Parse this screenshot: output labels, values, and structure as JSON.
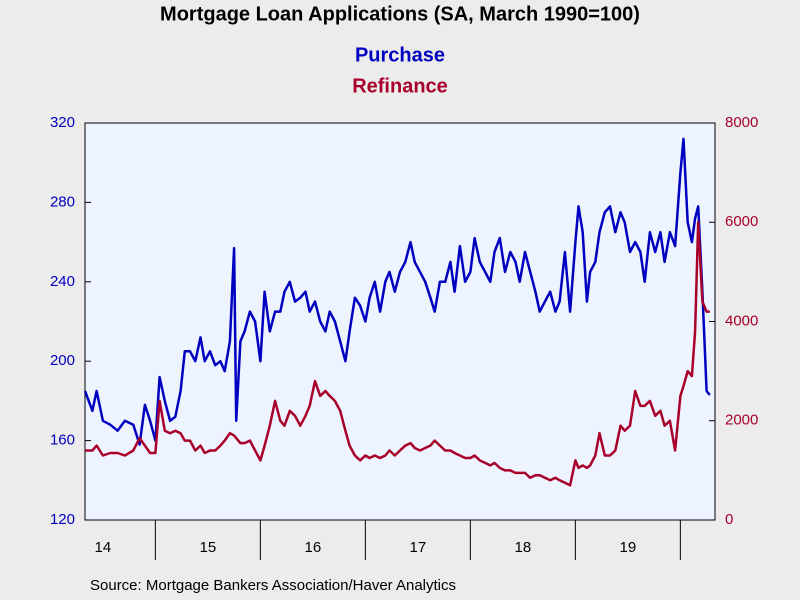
{
  "chart_data": {
    "type": "line",
    "title": "Mortgage Loan Applications (SA, March 1990=100)",
    "source": "Source:  Mortgage Bankers Association/Haver Analytics",
    "x": [
      2014.33,
      2014.4,
      2014.44,
      2014.5,
      2014.57,
      2014.64,
      2014.71,
      2014.79,
      2014.85,
      2014.9,
      2014.95,
      2015.0,
      2015.04,
      2015.09,
      2015.14,
      2015.19,
      2015.24,
      2015.28,
      2015.33,
      2015.38,
      2015.43,
      2015.47,
      2015.52,
      2015.57,
      2015.62,
      2015.66,
      2015.71,
      2015.75,
      2015.77,
      2015.81,
      2015.85,
      2015.9,
      2015.95,
      2016.0,
      2016.04,
      2016.09,
      2016.14,
      2016.19,
      2016.23,
      2016.28,
      2016.33,
      2016.38,
      2016.43,
      2016.47,
      2016.52,
      2016.57,
      2016.62,
      2016.66,
      2016.71,
      2016.76,
      2016.81,
      2016.85,
      2016.9,
      2016.95,
      2017.0,
      2017.04,
      2017.09,
      2017.14,
      2017.19,
      2017.23,
      2017.28,
      2017.33,
      2017.38,
      2017.43,
      2017.47,
      2017.52,
      2017.57,
      2017.62,
      2017.66,
      2017.71,
      2017.76,
      2017.81,
      2017.85,
      2017.9,
      2017.95,
      2018.0,
      2018.04,
      2018.09,
      2018.14,
      2018.19,
      2018.23,
      2018.28,
      2018.33,
      2018.38,
      2018.43,
      2018.47,
      2018.52,
      2018.57,
      2018.62,
      2018.66,
      2018.71,
      2018.76,
      2018.81,
      2018.85,
      2018.9,
      2018.95,
      2019.0,
      2019.03,
      2019.07,
      2019.11,
      2019.14,
      2019.19,
      2019.23,
      2019.28,
      2019.33,
      2019.38,
      2019.43,
      2019.47,
      2019.52,
      2019.57,
      2019.62,
      2019.66,
      2019.71,
      2019.76,
      2019.81,
      2019.85,
      2019.9,
      2019.95,
      2020.0,
      2020.03,
      2020.07,
      2020.11,
      2020.14,
      2020.17,
      2020.21,
      2020.25,
      2020.28
    ],
    "series": [
      {
        "name": "Purchase",
        "color": "#0000c0",
        "axis": "y",
        "values": [
          185,
          175,
          185,
          170,
          168,
          165,
          170,
          168,
          158,
          178,
          170,
          160,
          192,
          180,
          170,
          172,
          185,
          205,
          205,
          200,
          212,
          200,
          205,
          198,
          200,
          195,
          210,
          257,
          170,
          210,
          215,
          225,
          220,
          200,
          235,
          215,
          225,
          225,
          235,
          240,
          230,
          232,
          235,
          225,
          230,
          220,
          215,
          225,
          220,
          210,
          200,
          215,
          232,
          228,
          220,
          232,
          240,
          225,
          240,
          245,
          235,
          245,
          250,
          260,
          250,
          245,
          240,
          232,
          225,
          240,
          240,
          250,
          235,
          258,
          240,
          245,
          262,
          250,
          245,
          240,
          255,
          262,
          245,
          255,
          250,
          240,
          255,
          245,
          235,
          225,
          230,
          235,
          225,
          230,
          255,
          225,
          260,
          278,
          265,
          230,
          245,
          250,
          265,
          275,
          278,
          265,
          275,
          270,
          255,
          260,
          255,
          240,
          265,
          255,
          265,
          250,
          265,
          258,
          295,
          312,
          270,
          260,
          272,
          278,
          235,
          185,
          183
        ]
      },
      {
        "name": "Refinance",
        "color": "#a8002a",
        "axis": "y2",
        "values": [
          1400,
          1400,
          1500,
          1300,
          1350,
          1350,
          1300,
          1400,
          1650,
          1500,
          1350,
          1350,
          2400,
          1800,
          1750,
          1800,
          1750,
          1600,
          1600,
          1400,
          1500,
          1350,
          1400,
          1400,
          1500,
          1600,
          1750,
          1700,
          1650,
          1550,
          1550,
          1600,
          1400,
          1200,
          1500,
          1900,
          2400,
          2000,
          1900,
          2200,
          2100,
          1900,
          2100,
          2300,
          2800,
          2500,
          2600,
          2500,
          2400,
          2200,
          1800,
          1500,
          1300,
          1200,
          1300,
          1250,
          1300,
          1250,
          1300,
          1400,
          1300,
          1400,
          1500,
          1550,
          1450,
          1400,
          1450,
          1500,
          1600,
          1500,
          1400,
          1400,
          1350,
          1300,
          1250,
          1250,
          1300,
          1200,
          1150,
          1100,
          1150,
          1050,
          1000,
          1000,
          950,
          950,
          950,
          850,
          900,
          900,
          850,
          800,
          850,
          800,
          750,
          700,
          1200,
          1050,
          1100,
          1050,
          1100,
          1300,
          1750,
          1300,
          1300,
          1400,
          1900,
          1800,
          1900,
          2600,
          2300,
          2300,
          2400,
          2100,
          2200,
          1900,
          2000,
          1400,
          2500,
          2700,
          3000,
          2900,
          3800,
          6000,
          4400,
          4200,
          4200
        ]
      }
    ],
    "xlim": [
      2014.33,
      2020.33
    ],
    "xticks": [
      {
        "value": 2014.5,
        "label": "14"
      },
      {
        "value": 2015.5,
        "label": "15"
      },
      {
        "value": 2016.5,
        "label": "16"
      },
      {
        "value": 2017.5,
        "label": "17"
      },
      {
        "value": 2018.5,
        "label": "18"
      },
      {
        "value": 2019.5,
        "label": "19"
      }
    ],
    "ylim": [
      120,
      320
    ],
    "yticks": [
      120,
      160,
      200,
      240,
      280,
      320
    ],
    "y2lim": [
      0,
      8000
    ],
    "y2ticks": [
      0,
      2000,
      4000,
      6000,
      8000
    ]
  }
}
